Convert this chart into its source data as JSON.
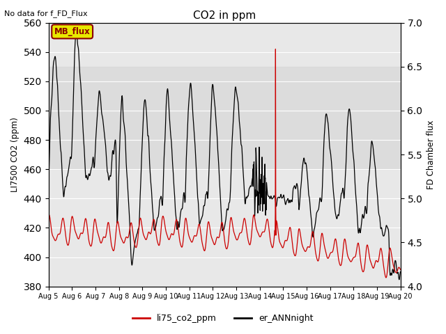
{
  "title": "CO2 in ppm",
  "top_left_text": "No data for f_FD_Flux",
  "ylabel_left": "LI7500 CO2 (ppm)",
  "ylabel_right": "FD Chamber flux",
  "ylim_left": [
    380,
    560
  ],
  "ylim_right": [
    4.0,
    7.0
  ],
  "yticks_left": [
    380,
    400,
    420,
    440,
    460,
    480,
    500,
    520,
    540,
    560
  ],
  "yticks_right": [
    4.0,
    4.5,
    5.0,
    5.5,
    6.0,
    6.5,
    7.0
  ],
  "xticklabels": [
    "Aug 5",
    "Aug 6",
    "Aug 7",
    "Aug 8",
    "Aug 9",
    "Aug 10",
    "Aug 11",
    "Aug 12",
    "Aug 13",
    "Aug 14",
    "Aug 15",
    "Aug 16",
    "Aug 17",
    "Aug 18",
    "Aug 19",
    "Aug 20"
  ],
  "legend_labels": [
    "li75_co2_ppm",
    "er_ANNnight"
  ],
  "legend_colors": [
    "#cc0000",
    "#000000"
  ],
  "line_red_color": "#cc0000",
  "line_black_color": "#000000",
  "mb_flux_box_facecolor": "#e8e800",
  "mb_flux_box_edgecolor": "#8b0000",
  "mb_flux_text": "MB_flux",
  "shading_ylow": 460,
  "shading_yhigh": 530,
  "shading_color": "#d8d8d8",
  "shading_alpha": 0.7,
  "bg_color": "#e8e8e8",
  "n_days": 15.5,
  "seed": 42
}
